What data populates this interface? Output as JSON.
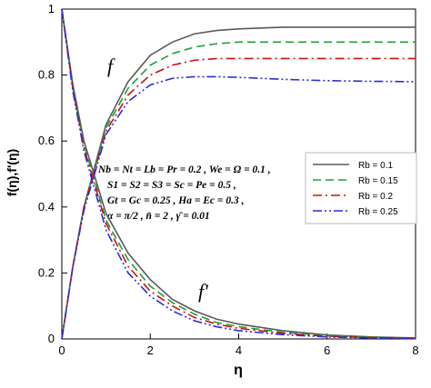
{
  "chart_data": {
    "type": "line",
    "x_label": "η",
    "y_label": "f(η),f'(η)",
    "annotations": [
      "f",
      "f'"
    ],
    "parameters": [
      "Nb = Nt = Lb = Pr = 0.2 , We = Ω = 0.1 ,",
      "S1 = S2 = S3 = Sc = Pe = 0.5 ,",
      "Gt = Gc = 0.25 , Ha = Ec = 0.3 ,",
      "α = π/2 , n̄ = 2 , γ̄ = 0.01"
    ],
    "x": [
      0,
      0.25,
      0.5,
      1,
      1.5,
      2,
      2.5,
      3,
      3.5,
      4,
      5,
      6,
      7,
      8
    ],
    "series": [
      {
        "name": "Rb = 0.1",
        "color": "#5a5a5a",
        "dash": "solid",
        "f": [
          0,
          0.22,
          0.4,
          0.65,
          0.78,
          0.86,
          0.9,
          0.925,
          0.935,
          0.94,
          0.945,
          0.945,
          0.945,
          0.945
        ],
        "f_prime": [
          1,
          0.77,
          0.6,
          0.38,
          0.26,
          0.18,
          0.12,
          0.085,
          0.06,
          0.045,
          0.025,
          0.012,
          0.006,
          0.003
        ]
      },
      {
        "name": "Rb = 0.15",
        "color": "#1f9e3a",
        "dash": "dash",
        "f": [
          0,
          0.22,
          0.4,
          0.64,
          0.76,
          0.83,
          0.865,
          0.885,
          0.895,
          0.9,
          0.9,
          0.9,
          0.9,
          0.9
        ],
        "f_prime": [
          1,
          0.76,
          0.59,
          0.36,
          0.24,
          0.16,
          0.11,
          0.075,
          0.05,
          0.037,
          0.02,
          0.01,
          0.005,
          0.002
        ]
      },
      {
        "name": "Rb = 0.2",
        "color": "#cc1111",
        "dash": "dashdot",
        "f": [
          0,
          0.22,
          0.4,
          0.63,
          0.74,
          0.8,
          0.83,
          0.845,
          0.85,
          0.85,
          0.85,
          0.85,
          0.85,
          0.85
        ],
        "f_prime": [
          1,
          0.76,
          0.58,
          0.35,
          0.22,
          0.145,
          0.1,
          0.065,
          0.045,
          0.032,
          0.017,
          0.008,
          0.004,
          0.002
        ]
      },
      {
        "name": "Rb = 0.25",
        "color": "#2b2bdd",
        "dash": "dashdotdot",
        "f": [
          0,
          0.22,
          0.39,
          0.62,
          0.72,
          0.77,
          0.79,
          0.795,
          0.795,
          0.793,
          0.787,
          0.783,
          0.781,
          0.78
        ],
        "f_prime": [
          1,
          0.75,
          0.57,
          0.33,
          0.2,
          0.13,
          0.085,
          0.055,
          0.037,
          0.025,
          0.013,
          0.006,
          0.003,
          0.001
        ]
      }
    ],
    "xlim": [
      0,
      8
    ],
    "ylim": [
      0,
      1
    ],
    "xticks": [
      0,
      2,
      4,
      6,
      8
    ],
    "yticks": [
      0,
      0.2,
      0.4,
      0.6,
      0.8,
      1
    ],
    "legend": "right"
  }
}
